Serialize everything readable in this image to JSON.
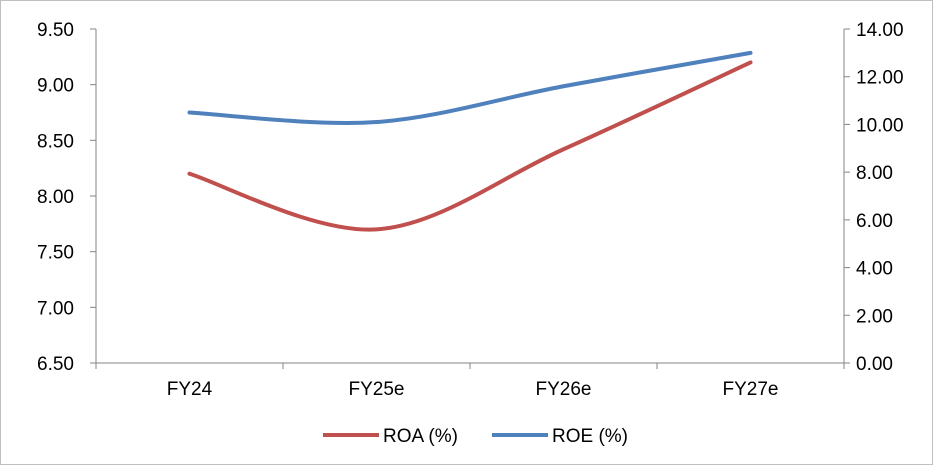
{
  "chart_data": {
    "type": "line",
    "categories": [
      "FY24",
      "FY25e",
      "FY26e",
      "FY27e"
    ],
    "series": [
      {
        "name": "ROA (%)",
        "axis": "left",
        "color": "#c0504d",
        "values": [
          8.2,
          7.7,
          8.42,
          9.2
        ]
      },
      {
        "name": "ROE (%)",
        "axis": "right",
        "color": "#4f81bd",
        "values": [
          10.5,
          10.1,
          11.6,
          13.0
        ]
      }
    ],
    "y_left": {
      "min": 6.5,
      "max": 9.5,
      "ticks": [
        "6.50",
        "7.00",
        "7.50",
        "8.00",
        "8.50",
        "9.00",
        "9.50"
      ]
    },
    "y_right": {
      "min": 0,
      "max": 14,
      "ticks": [
        "0.00",
        "2.00",
        "4.00",
        "6.00",
        "8.00",
        "10.00",
        "12.00",
        "14.00"
      ]
    },
    "grid": false,
    "legend": "bottom",
    "line_smoothing": "curved"
  }
}
